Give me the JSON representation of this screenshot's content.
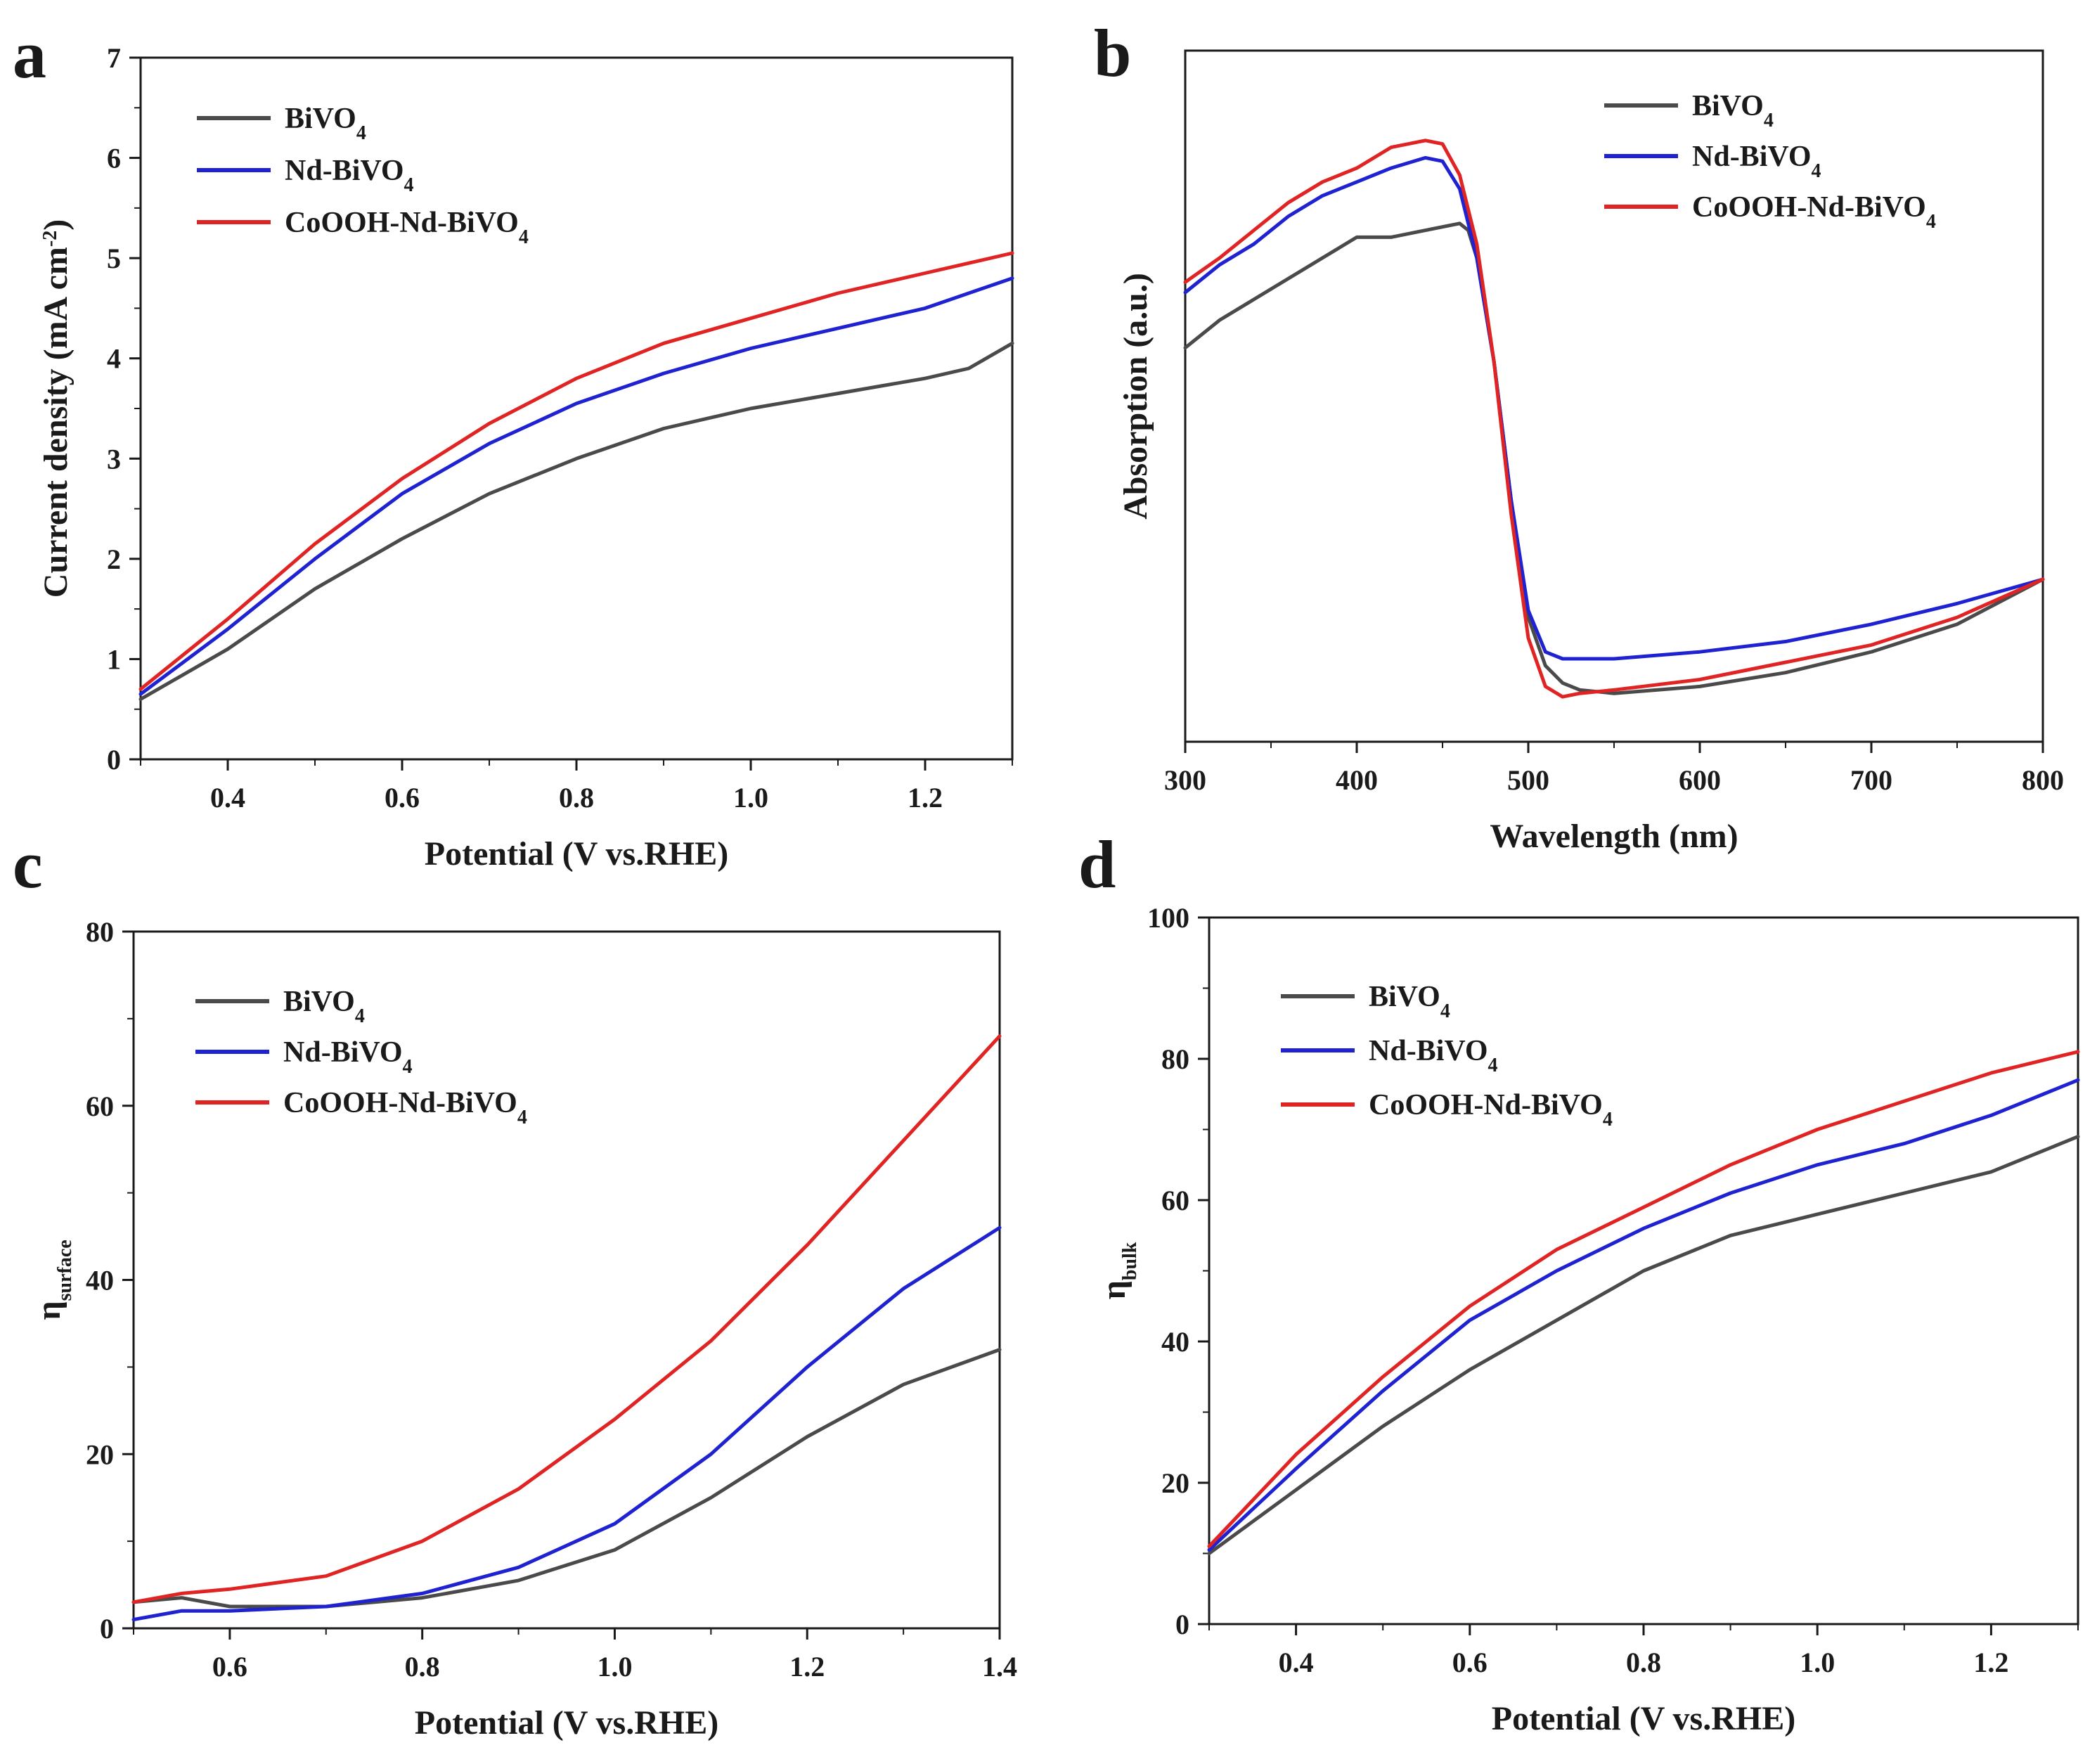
{
  "figure": {
    "panels": [
      {
        "letter": "a",
        "chart_data": {
          "type": "line",
          "title": "",
          "xlabel": "Potential (V vs.RHE)",
          "ylabel_parts": [
            {
              "t": "Current density (mA cm",
              "s": ""
            },
            {
              "t": "-2",
              "s": "sup"
            },
            {
              "t": ")",
              "s": ""
            }
          ],
          "xlim": [
            0.3,
            1.3
          ],
          "ylim": [
            0,
            7
          ],
          "xticks": [
            0.4,
            0.6,
            0.8,
            1.0,
            1.2
          ],
          "xtick_labels": [
            "0.4",
            "0.6",
            "0.8",
            "1.0",
            "1.2"
          ],
          "xtick_minor": [
            0.3,
            0.5,
            0.7,
            0.9,
            1.1,
            1.3
          ],
          "yticks": [
            0,
            1,
            2,
            3,
            4,
            5,
            6,
            7
          ],
          "ytick_labels": [
            "0",
            "1",
            "2",
            "3",
            "4",
            "5",
            "6",
            "7"
          ],
          "ytick_minor": [
            0.5,
            1.5,
            2.5,
            3.5,
            4.5,
            5.5,
            6.5
          ],
          "legend_position": "top-left",
          "series": [
            {
              "name_parts": [
                {
                  "t": "BiVO",
                  "s": ""
                },
                {
                  "t": "4",
                  "s": "sub"
                }
              ],
              "color": "#4a4a4a",
              "x": [
                0.3,
                0.4,
                0.5,
                0.6,
                0.7,
                0.8,
                0.9,
                1.0,
                1.1,
                1.2,
                1.25,
                1.3
              ],
              "y": [
                0.6,
                1.1,
                1.7,
                2.2,
                2.65,
                3.0,
                3.3,
                3.5,
                3.65,
                3.8,
                3.9,
                4.15
              ]
            },
            {
              "name_parts": [
                {
                  "t": "Nd-BiVO",
                  "s": ""
                },
                {
                  "t": "4",
                  "s": "sub"
                }
              ],
              "color": "#1f22d0",
              "x": [
                0.3,
                0.4,
                0.5,
                0.6,
                0.7,
                0.8,
                0.9,
                1.0,
                1.1,
                1.2,
                1.3
              ],
              "y": [
                0.65,
                1.3,
                2.0,
                2.65,
                3.15,
                3.55,
                3.85,
                4.1,
                4.3,
                4.5,
                4.8
              ]
            },
            {
              "name_parts": [
                {
                  "t": "CoOOH-Nd-BiVO",
                  "s": ""
                },
                {
                  "t": "4",
                  "s": "sub"
                }
              ],
              "color": "#e02424",
              "x": [
                0.3,
                0.4,
                0.5,
                0.6,
                0.7,
                0.8,
                0.9,
                1.0,
                1.1,
                1.2,
                1.3
              ],
              "y": [
                0.7,
                1.4,
                2.15,
                2.8,
                3.35,
                3.8,
                4.15,
                4.4,
                4.65,
                4.85,
                5.05
              ]
            }
          ]
        }
      },
      {
        "letter": "b",
        "chart_data": {
          "type": "line",
          "title": "",
          "xlabel": "Wavelength (nm)",
          "ylabel_parts": [
            {
              "t": "Absorption (a.u.)",
              "s": ""
            }
          ],
          "xlim": [
            300,
            800
          ],
          "ylim": [
            0,
            1
          ],
          "xticks": [
            300,
            400,
            500,
            600,
            700,
            800
          ],
          "xtick_labels": [
            "300",
            "400",
            "500",
            "600",
            "700",
            "800"
          ],
          "xtick_minor": [
            350,
            450,
            550,
            650,
            750
          ],
          "yticks": [],
          "ytick_labels": [],
          "ytick_minor": [],
          "legend_position": "top-right",
          "series": [
            {
              "name_parts": [
                {
                  "t": "BiVO",
                  "s": ""
                },
                {
                  "t": "4",
                  "s": "sub"
                }
              ],
              "color": "#4a4a4a",
              "x": [
                300,
                320,
                340,
                360,
                380,
                400,
                420,
                440,
                460,
                465,
                470,
                480,
                490,
                500,
                510,
                520,
                530,
                550,
                600,
                650,
                700,
                750,
                800
              ],
              "y": [
                0.57,
                0.61,
                0.64,
                0.67,
                0.7,
                0.73,
                0.73,
                0.74,
                0.75,
                0.74,
                0.7,
                0.55,
                0.35,
                0.18,
                0.11,
                0.085,
                0.075,
                0.07,
                0.08,
                0.1,
                0.13,
                0.17,
                0.235
              ]
            },
            {
              "name_parts": [
                {
                  "t": "Nd-BiVO",
                  "s": ""
                },
                {
                  "t": "4",
                  "s": "sub"
                }
              ],
              "color": "#1f22d0",
              "x": [
                300,
                320,
                340,
                360,
                380,
                400,
                420,
                440,
                450,
                460,
                470,
                480,
                490,
                500,
                510,
                520,
                530,
                550,
                600,
                650,
                700,
                750,
                800
              ],
              "y": [
                0.65,
                0.69,
                0.72,
                0.76,
                0.79,
                0.81,
                0.83,
                0.845,
                0.84,
                0.8,
                0.7,
                0.55,
                0.35,
                0.19,
                0.13,
                0.12,
                0.12,
                0.12,
                0.13,
                0.145,
                0.17,
                0.2,
                0.235
              ]
            },
            {
              "name_parts": [
                {
                  "t": "CoOOH-Nd-BiVO",
                  "s": ""
                },
                {
                  "t": "4",
                  "s": "sub"
                }
              ],
              "color": "#e02424",
              "x": [
                300,
                320,
                340,
                360,
                380,
                400,
                420,
                440,
                450,
                460,
                470,
                480,
                490,
                500,
                510,
                520,
                530,
                550,
                600,
                650,
                700,
                750,
                800
              ],
              "y": [
                0.665,
                0.7,
                0.74,
                0.78,
                0.81,
                0.83,
                0.86,
                0.87,
                0.865,
                0.82,
                0.72,
                0.55,
                0.33,
                0.15,
                0.08,
                0.065,
                0.07,
                0.075,
                0.09,
                0.115,
                0.14,
                0.18,
                0.235
              ]
            }
          ]
        }
      },
      {
        "letter": "c",
        "chart_data": {
          "type": "line",
          "title": "",
          "xlabel": "Potential (V vs.RHE)",
          "ylabel_parts": [
            {
              "t": "η",
              "s": ""
            },
            {
              "t": "surface",
              "s": "sub"
            }
          ],
          "xlim": [
            0.5,
            1.4
          ],
          "ylim": [
            0,
            80
          ],
          "xticks": [
            0.6,
            0.8,
            1.0,
            1.2,
            1.4
          ],
          "xtick_labels": [
            "0.6",
            "0.8",
            "1.0",
            "1.2",
            "1.4"
          ],
          "xtick_minor": [
            0.5,
            0.7,
            0.9,
            1.1,
            1.3
          ],
          "yticks": [
            0,
            20,
            40,
            60,
            80
          ],
          "ytick_labels": [
            "0",
            "20",
            "40",
            "60",
            "80"
          ],
          "ytick_minor": [
            10,
            30,
            50,
            70
          ],
          "legend_position": "top-left",
          "series": [
            {
              "name_parts": [
                {
                  "t": "BiVO",
                  "s": ""
                },
                {
                  "t": "4",
                  "s": "sub"
                }
              ],
              "color": "#4a4a4a",
              "x": [
                0.5,
                0.55,
                0.6,
                0.7,
                0.8,
                0.9,
                1.0,
                1.1,
                1.2,
                1.3,
                1.4
              ],
              "y": [
                3,
                3.5,
                2.5,
                2.5,
                3.5,
                5.5,
                9,
                15,
                22,
                28,
                32
              ]
            },
            {
              "name_parts": [
                {
                  "t": "Nd-BiVO",
                  "s": ""
                },
                {
                  "t": "4",
                  "s": "sub"
                }
              ],
              "color": "#1f22d0",
              "x": [
                0.5,
                0.55,
                0.6,
                0.7,
                0.8,
                0.9,
                1.0,
                1.1,
                1.2,
                1.3,
                1.4
              ],
              "y": [
                1,
                2,
                2,
                2.5,
                4,
                7,
                12,
                20,
                30,
                39,
                46
              ]
            },
            {
              "name_parts": [
                {
                  "t": "CoOOH-Nd-BiVO",
                  "s": ""
                },
                {
                  "t": "4",
                  "s": "sub"
                }
              ],
              "color": "#e02424",
              "x": [
                0.5,
                0.55,
                0.6,
                0.7,
                0.8,
                0.9,
                1.0,
                1.1,
                1.2,
                1.3,
                1.4
              ],
              "y": [
                3,
                4,
                4.5,
                6,
                10,
                16,
                24,
                33,
                44,
                56,
                68
              ]
            }
          ]
        }
      },
      {
        "letter": "d",
        "chart_data": {
          "type": "line",
          "title": "",
          "xlabel": "Potential (V vs.RHE)",
          "ylabel_parts": [
            {
              "t": "η",
              "s": ""
            },
            {
              "t": "bulk",
              "s": "sub"
            }
          ],
          "xlim": [
            0.3,
            1.3
          ],
          "ylim": [
            0,
            100
          ],
          "xticks": [
            0.4,
            0.6,
            0.8,
            1.0,
            1.2
          ],
          "xtick_labels": [
            "0.4",
            "0.6",
            "0.8",
            "1.0",
            "1.2"
          ],
          "xtick_minor": [
            0.3,
            0.5,
            0.7,
            0.9,
            1.1,
            1.3
          ],
          "yticks": [
            0,
            20,
            40,
            60,
            80,
            100
          ],
          "ytick_labels": [
            "0",
            "20",
            "40",
            "60",
            "80",
            "100"
          ],
          "ytick_minor": [
            10,
            30,
            50,
            70,
            90
          ],
          "legend_position": "top-left",
          "series": [
            {
              "name_parts": [
                {
                  "t": "BiVO",
                  "s": ""
                },
                {
                  "t": "4",
                  "s": "sub"
                }
              ],
              "color": "#4a4a4a",
              "x": [
                0.3,
                0.4,
                0.5,
                0.6,
                0.7,
                0.8,
                0.9,
                1.0,
                1.1,
                1.2,
                1.3
              ],
              "y": [
                10,
                19,
                28,
                36,
                43,
                50,
                55,
                58,
                61,
                64,
                69
              ]
            },
            {
              "name_parts": [
                {
                  "t": "Nd-BiVO",
                  "s": ""
                },
                {
                  "t": "4",
                  "s": "sub"
                }
              ],
              "color": "#1f22d0",
              "x": [
                0.3,
                0.4,
                0.5,
                0.6,
                0.7,
                0.8,
                0.9,
                1.0,
                1.1,
                1.2,
                1.3
              ],
              "y": [
                10.5,
                22,
                33,
                43,
                50,
                56,
                61,
                65,
                68,
                72,
                77
              ]
            },
            {
              "name_parts": [
                {
                  "t": "CoOOH-Nd-BiVO",
                  "s": ""
                },
                {
                  "t": "4",
                  "s": "sub"
                }
              ],
              "color": "#e02424",
              "x": [
                0.3,
                0.4,
                0.5,
                0.6,
                0.7,
                0.8,
                0.9,
                1.0,
                1.1,
                1.2,
                1.3
              ],
              "y": [
                11,
                24,
                35,
                45,
                53,
                59,
                65,
                70,
                74,
                78,
                81
              ]
            }
          ]
        }
      }
    ]
  }
}
